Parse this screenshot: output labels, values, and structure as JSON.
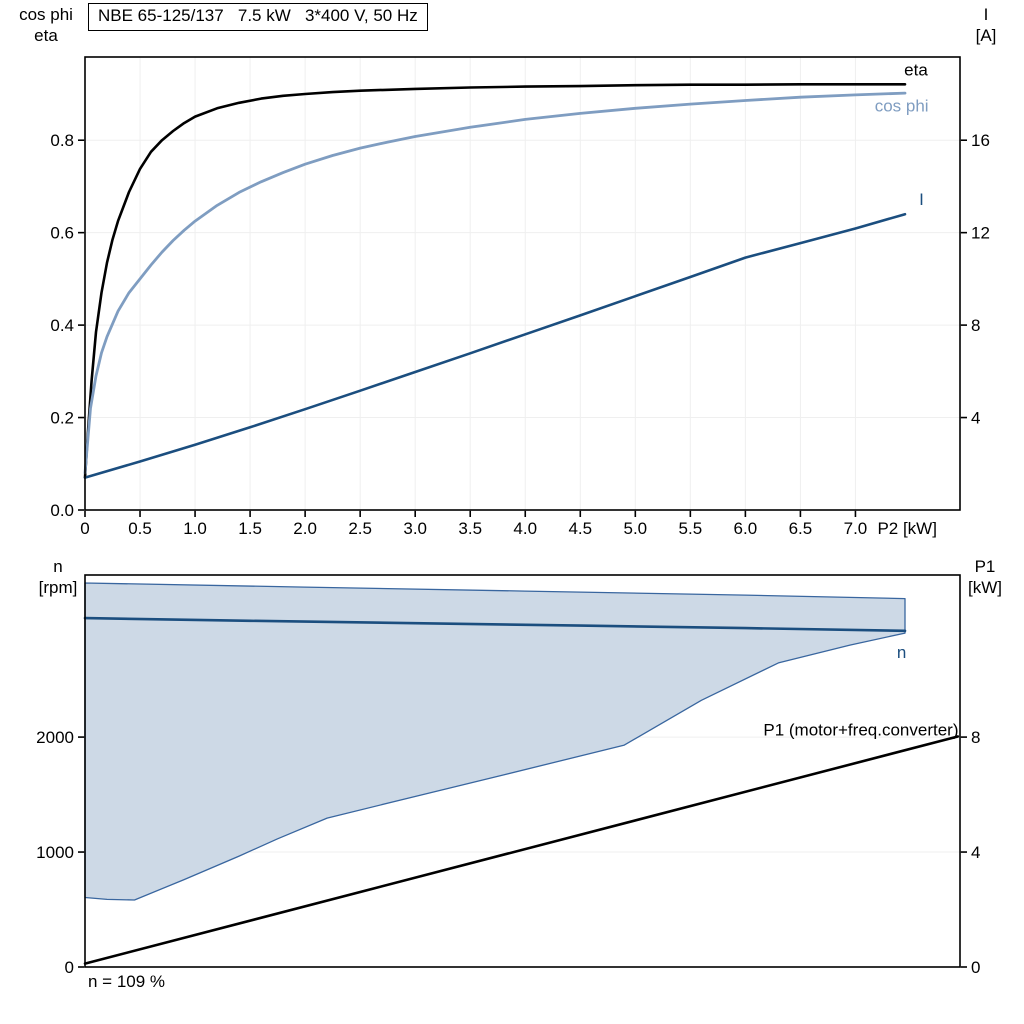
{
  "page": {
    "title_box": "NBE 65-125/137   7.5 kW   3*400 V, 50 Hz",
    "annotation": "n = 109 %"
  },
  "axes_labels": {
    "top_left_line1": "cos phi",
    "top_left_line2": "eta",
    "top_right_line1": "I",
    "top_right_line2": "[A]",
    "bottom_left_line1": "n",
    "bottom_left_line2": "[rpm]",
    "bottom_right_line1": "P1",
    "bottom_right_line2": "[kW]"
  },
  "colors": {
    "eta_and_p1": "#000000",
    "cos_phi": "#7f9dc1",
    "current_and_speed": "#1b4e7f",
    "envelope_fill": "#cdd9e6",
    "envelope_stroke": "#39669f",
    "frame": "#000000"
  },
  "chart_data": [
    {
      "id": "top",
      "type": "line",
      "title": "NBE 65-125/137   7.5 kW   3*400 V, 50 Hz",
      "x": {
        "label": "P2 [kW]",
        "label_x": 7.2,
        "min": 0,
        "max": 7.95,
        "ticks": [
          {
            "v": 0,
            "label": "0"
          },
          {
            "v": 0.5,
            "label": "0.5"
          },
          {
            "v": 1,
            "label": "1.0"
          },
          {
            "v": 1.5,
            "label": "1.5"
          },
          {
            "v": 2,
            "label": "2.0"
          },
          {
            "v": 2.5,
            "label": "2.5"
          },
          {
            "v": 3,
            "label": "3.0"
          },
          {
            "v": 3.5,
            "label": "3.5"
          },
          {
            "v": 4,
            "label": "4.0"
          },
          {
            "v": 4.5,
            "label": "4.5"
          },
          {
            "v": 5,
            "label": "5.0"
          },
          {
            "v": 5.5,
            "label": "5.5"
          },
          {
            "v": 6,
            "label": "6.0"
          },
          {
            "v": 6.5,
            "label": "6.5"
          },
          {
            "v": 7,
            "label": "7.0"
          }
        ]
      },
      "y_left": {
        "label": "cos phi / eta",
        "min": 0,
        "max": 0.98,
        "ticks": [
          {
            "v": 0,
            "label": "0.0"
          },
          {
            "v": 0.2,
            "label": "0.2"
          },
          {
            "v": 0.4,
            "label": "0.4"
          },
          {
            "v": 0.6,
            "label": "0.6"
          },
          {
            "v": 0.8,
            "label": "0.8"
          }
        ]
      },
      "y_right": {
        "label": "I [A]",
        "min": 0,
        "max": 19.6,
        "ticks": [
          {
            "v": 4,
            "label": "4"
          },
          {
            "v": 8,
            "label": "8"
          },
          {
            "v": 12,
            "label": "12"
          },
          {
            "v": 16,
            "label": "16"
          }
        ]
      },
      "series": [
        {
          "name": "eta",
          "kind": "line",
          "axis": "left",
          "color": "#000000",
          "width": 2.6,
          "label": {
            "text": "eta",
            "x": 7.55,
            "y": 0.94,
            "axis": "left"
          },
          "points": [
            [
              0,
              0.07
            ],
            [
              0.03,
              0.18
            ],
            [
              0.06,
              0.28
            ],
            [
              0.1,
              0.385
            ],
            [
              0.15,
              0.47
            ],
            [
              0.2,
              0.535
            ],
            [
              0.25,
              0.585
            ],
            [
              0.3,
              0.625
            ],
            [
              0.4,
              0.688
            ],
            [
              0.5,
              0.738
            ],
            [
              0.6,
              0.775
            ],
            [
              0.7,
              0.8
            ],
            [
              0.8,
              0.82
            ],
            [
              0.9,
              0.837
            ],
            [
              1,
              0.851
            ],
            [
              1.2,
              0.869
            ],
            [
              1.4,
              0.881
            ],
            [
              1.6,
              0.89
            ],
            [
              1.8,
              0.896
            ],
            [
              2,
              0.9
            ],
            [
              2.25,
              0.904
            ],
            [
              2.5,
              0.907
            ],
            [
              3,
              0.911
            ],
            [
              3.5,
              0.914
            ],
            [
              4,
              0.916
            ],
            [
              4.5,
              0.917
            ],
            [
              5,
              0.919
            ],
            [
              5.5,
              0.92
            ],
            [
              6,
              0.92
            ],
            [
              6.5,
              0.921
            ],
            [
              7,
              0.921
            ],
            [
              7.45,
              0.921
            ]
          ]
        },
        {
          "name": "cos-phi",
          "kind": "line",
          "axis": "left",
          "color": "#7f9dc1",
          "width": 2.8,
          "label": {
            "text": "cos phi",
            "x": 7.42,
            "y": 0.862,
            "axis": "left"
          },
          "points": [
            [
              0,
              0.08
            ],
            [
              0.05,
              0.22
            ],
            [
              0.1,
              0.29
            ],
            [
              0.15,
              0.34
            ],
            [
              0.2,
              0.375
            ],
            [
              0.3,
              0.43
            ],
            [
              0.4,
              0.47
            ],
            [
              0.5,
              0.5
            ],
            [
              0.6,
              0.53
            ],
            [
              0.7,
              0.558
            ],
            [
              0.8,
              0.583
            ],
            [
              0.9,
              0.605
            ],
            [
              1,
              0.625
            ],
            [
              1.2,
              0.659
            ],
            [
              1.4,
              0.687
            ],
            [
              1.6,
              0.71
            ],
            [
              1.8,
              0.73
            ],
            [
              2,
              0.748
            ],
            [
              2.25,
              0.767
            ],
            [
              2.5,
              0.783
            ],
            [
              2.75,
              0.796
            ],
            [
              3,
              0.808
            ],
            [
              3.5,
              0.828
            ],
            [
              4,
              0.845
            ],
            [
              4.5,
              0.858
            ],
            [
              5,
              0.869
            ],
            [
              5.5,
              0.878
            ],
            [
              6,
              0.886
            ],
            [
              6.5,
              0.893
            ],
            [
              7,
              0.898
            ],
            [
              7.45,
              0.902
            ]
          ]
        },
        {
          "name": "current",
          "kind": "line",
          "axis": "right",
          "color": "#1b4e7f",
          "width": 2.6,
          "label": {
            "text": "I",
            "x": 7.6,
            "y": 13.2,
            "axis": "right"
          },
          "points": [
            [
              0,
              1.4
            ],
            [
              0.5,
              2.1
            ],
            [
              1,
              2.82
            ],
            [
              1.5,
              3.58
            ],
            [
              2,
              4.36
            ],
            [
              2.5,
              5.16
            ],
            [
              3,
              5.97
            ],
            [
              3.5,
              6.78
            ],
            [
              4,
              7.6
            ],
            [
              4.5,
              8.42
            ],
            [
              5,
              9.25
            ],
            [
              5.5,
              10.08
            ],
            [
              6,
              10.92
            ],
            [
              6.5,
              11.55
            ],
            [
              7,
              12.18
            ],
            [
              7.45,
              12.8
            ]
          ]
        }
      ]
    },
    {
      "id": "bottom",
      "type": "line",
      "x": {
        "min": 0,
        "max": 7.95,
        "ticks": []
      },
      "y_left": {
        "label": "n [rpm]",
        "min": 0,
        "max": 3410,
        "ticks": [
          {
            "v": 0,
            "label": "0"
          },
          {
            "v": 1000,
            "label": "1000"
          },
          {
            "v": 2000,
            "label": "2000"
          }
        ]
      },
      "y_right": {
        "label": "P1 [kW]",
        "min": 0,
        "max": 13.64,
        "ticks": [
          {
            "v": 0,
            "label": "0"
          },
          {
            "v": 4,
            "label": "4"
          },
          {
            "v": 8,
            "label": "8"
          }
        ]
      },
      "annotation": "n = 109 %",
      "series": [
        {
          "name": "operating-envelope",
          "kind": "area",
          "axis": "left",
          "color": "#39669f",
          "fill": "#cdd9e6",
          "width": 1.3,
          "points": [
            [
              0,
              3340
            ],
            [
              2,
              3305
            ],
            [
              4,
              3270
            ],
            [
              6,
              3235
            ],
            [
              7.45,
              3205
            ],
            [
              7.45,
              2905
            ],
            [
              6.95,
              2800
            ],
            [
              6.3,
              2645
            ],
            [
              5.6,
              2320
            ],
            [
              4.9,
              1930
            ],
            [
              3.8,
              1670
            ],
            [
              3.05,
              1495
            ],
            [
              2.2,
              1295
            ],
            [
              1.75,
              1115
            ],
            [
              1.4,
              965
            ],
            [
              0.9,
              760
            ],
            [
              0.45,
              583
            ],
            [
              0.2,
              588
            ],
            [
              0,
              605
            ]
          ]
        },
        {
          "name": "speed",
          "kind": "line",
          "axis": "left",
          "color": "#1b4e7f",
          "width": 2.6,
          "label": {
            "text": "n",
            "x": 7.42,
            "y": 2690,
            "axis": "left"
          },
          "points": [
            [
              0,
              3035
            ],
            [
              1.5,
              3012
            ],
            [
              3,
              2991
            ],
            [
              4.5,
              2970
            ],
            [
              6,
              2948
            ],
            [
              7.45,
              2925
            ]
          ]
        },
        {
          "name": "p1",
          "kind": "line",
          "axis": "right",
          "color": "#000000",
          "width": 2.6,
          "label": {
            "text": "P1 (motor+freq.converter)",
            "x": 7.05,
            "y": 8.05,
            "axis": "right"
          },
          "points": [
            [
              0,
              0.12
            ],
            [
              7.93,
              8.02
            ]
          ]
        }
      ]
    }
  ]
}
